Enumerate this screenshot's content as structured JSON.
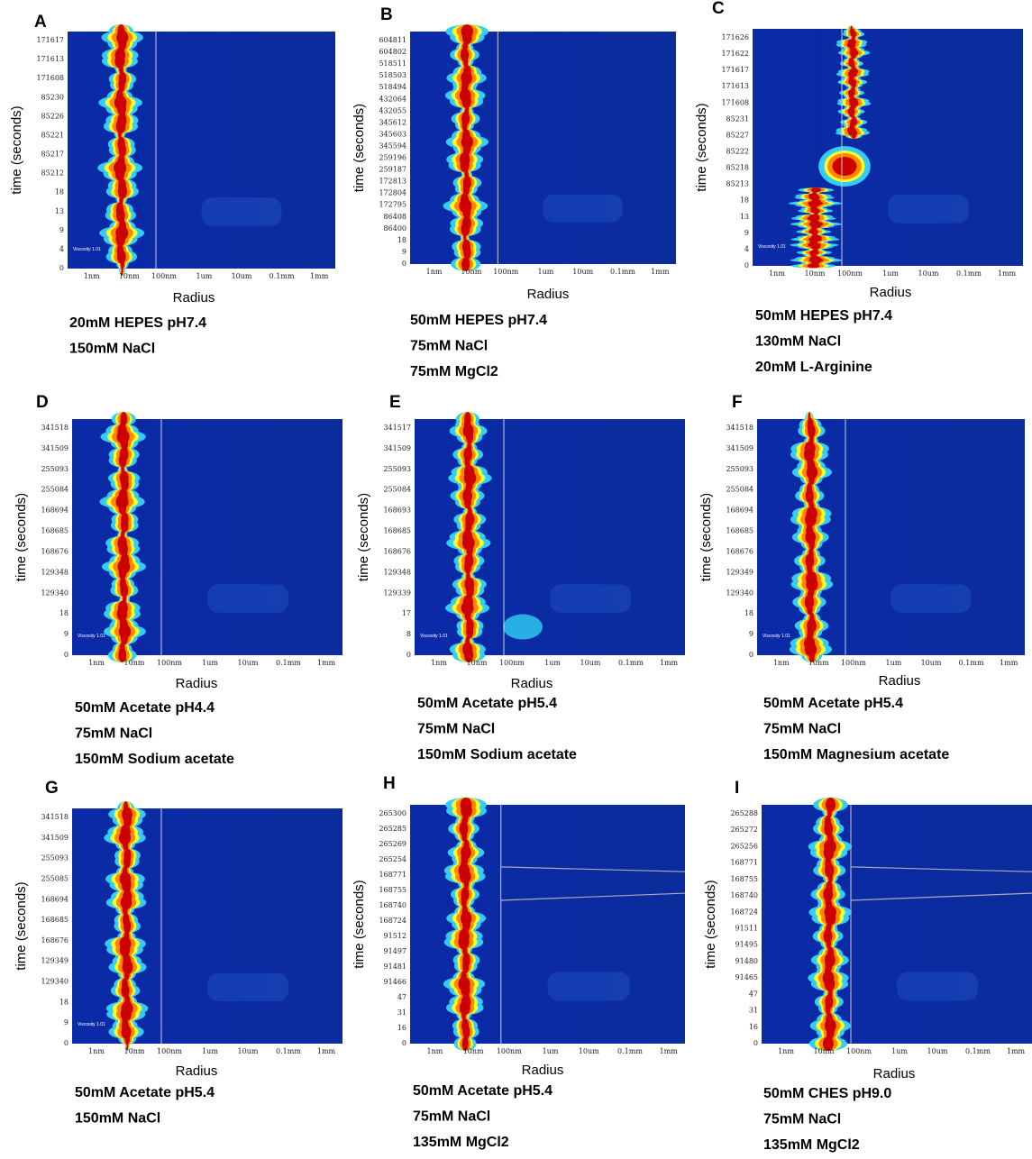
{
  "x_label": "Radius",
  "y_label": "time (seconds)",
  "x_tick_labels": [
    "1nm",
    "10nm",
    "100nm",
    "1um",
    "10um",
    "0.1mm",
    "1mm"
  ],
  "viscosity": "Viscosity 1.01",
  "panels": [
    {
      "letter": "A",
      "y_tick_labels": [
        "171617",
        "171613",
        "171608",
        "85230",
        "85226",
        "85221",
        "85217",
        "85212",
        "18",
        "13",
        "9",
        "4",
        "0"
      ],
      "caption": [
        "20mM HEPES pH7.4",
        "150mM NaCl"
      ]
    },
    {
      "letter": "B",
      "y_tick_labels": [
        "604811",
        "604802",
        "518511",
        "518503",
        "518494",
        "432064",
        "432055",
        "345612",
        "345603",
        "345594",
        "259196",
        "259187",
        "172813",
        "172804",
        "172795",
        "86408",
        "86400",
        "18",
        "9",
        "0"
      ],
      "caption": [
        "50mM HEPES pH7.4",
        "75mM NaCl",
        "75mM MgCl2"
      ]
    },
    {
      "letter": "C",
      "y_tick_labels": [
        "171626",
        "171622",
        "171617",
        "171613",
        "171608",
        "85231",
        "85227",
        "85222",
        "85218",
        "85213",
        "18",
        "13",
        "9",
        "4",
        "0"
      ],
      "caption": [
        "50mM HEPES pH7.4",
        "130mM NaCl",
        "20mM L-Arginine"
      ]
    },
    {
      "letter": "D",
      "y_tick_labels": [
        "341518",
        "341509",
        "255093",
        "255084",
        "168694",
        "168685",
        "168676",
        "129348",
        "129340",
        "18",
        "9",
        "0"
      ],
      "caption": [
        "50mM Acetate pH4.4",
        "75mM NaCl",
        "150mM Sodium acetate"
      ]
    },
    {
      "letter": "E",
      "y_tick_labels": [
        "341517",
        "341509",
        "255093",
        "255084",
        "168693",
        "168685",
        "168676",
        "129348",
        "129339",
        "17",
        "8",
        "0"
      ],
      "caption": [
        "50mM Acetate pH5.4",
        "75mM NaCl",
        "150mM Sodium acetate"
      ]
    },
    {
      "letter": "F",
      "y_tick_labels": [
        "341518",
        "341509",
        "255093",
        "255084",
        "168694",
        "168685",
        "168676",
        "129349",
        "129340",
        "18",
        "9",
        "0"
      ],
      "caption": [
        "50mM Acetate pH5.4",
        "75mM NaCl",
        "150mM Magnesium acetate"
      ]
    },
    {
      "letter": "G",
      "y_tick_labels": [
        "341518",
        "341509",
        "255093",
        "255085",
        "168694",
        "168685",
        "168676",
        "129349",
        "129340",
        "18",
        "9",
        "0"
      ],
      "caption": [
        "50mM Acetate pH5.4",
        "150mM NaCl"
      ]
    },
    {
      "letter": "H",
      "y_tick_labels": [
        "265300",
        "265285",
        "265269",
        "265254",
        "168771",
        "168755",
        "168740",
        "168724",
        "91512",
        "91497",
        "91481",
        "91466",
        "47",
        "31",
        "16",
        "0"
      ],
      "caption": [
        "50mM Acetate pH5.4",
        "75mM NaCl",
        "135mM MgCl2"
      ]
    },
    {
      "letter": "I",
      "y_tick_labels": [
        "265288",
        "265272",
        "265256",
        "168771",
        "168755",
        "168740",
        "168724",
        "91511",
        "91495",
        "91480",
        "91465",
        "47",
        "31",
        "16",
        "0"
      ],
      "caption": [
        "50mM CHES pH9.0",
        "75mM NaCl",
        "135mM MgCl2"
      ]
    }
  ]
}
